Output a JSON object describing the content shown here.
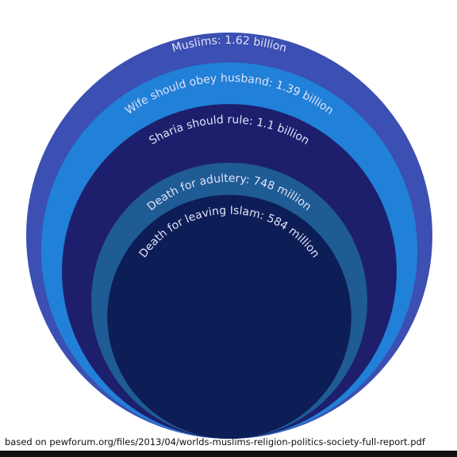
{
  "chart_data": {
    "type": "nested-circles",
    "labels": [
      "Muslims: 1.62 billion",
      "Wife should obey husband: 1.39 billion",
      "Sharia should rule: 1.1 billion",
      "Death for adultery: 748 million",
      "Death for leaving Islam: 584 million"
    ],
    "values": [
      1620,
      1390,
      1100,
      748,
      584
    ],
    "colors": [
      "#3c4fb2",
      "#2180d8",
      "#1d1f6c",
      "#1f5b94",
      "#0d1d56"
    ],
    "source": "based on pewforum.org/files/2013/04/worlds-muslims-religion-politics-society-full-report.pdf"
  }
}
